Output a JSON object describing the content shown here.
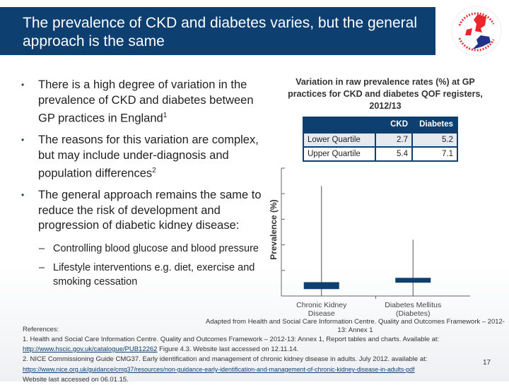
{
  "title": "The prevalence of CKD and diabetes varies, but the general approach is the same",
  "logo": {
    "top_text": "British Renal Society",
    "bottom_text": "Multi-professional team"
  },
  "bullets": [
    "There is a high degree of variation in the prevalence of CKD and diabetes between GP practices in England",
    "The reasons for this variation are complex, but may include under-diagnosis and population differences",
    "The general approach remains the same to reduce the risk of development and progression of diabetic kidney disease:"
  ],
  "bullet_refs": [
    "1",
    "2",
    ""
  ],
  "sub_bullets": [
    "Controlling blood glucose and blood pressure",
    "Lifestyle interventions e.g. diet, exercise and smoking cessation"
  ],
  "table": {
    "headers": [
      "",
      "CKD",
      "Diabetes"
    ],
    "rows": [
      [
        "Lower Quartile",
        "2.7",
        "5.2"
      ],
      [
        "Upper Quartile",
        "5.4",
        "7.1"
      ]
    ]
  },
  "chart_data": {
    "type": "box",
    "title": "Variation in raw prevalence rates (%) at GP practices for CKD and diabetes QOF registers, 2012/13",
    "ylabel": "Prevalence (%)",
    "ylim": [
      0,
      50
    ],
    "yticks": [
      "0",
      "10",
      "20",
      "30",
      "40",
      "50"
    ],
    "categories": [
      "Chronic Kidney Disease",
      "Diabetes Mellitus (Diabetes)"
    ],
    "series": [
      {
        "category": "Chronic Kidney Disease",
        "min": 0,
        "q1": 2.7,
        "q3": 5.4,
        "max": 43
      },
      {
        "category": "Diabetes Mellitus (Diabetes)",
        "min": 0,
        "q1": 5.2,
        "q3": 7.1,
        "max": 22
      }
    ],
    "color": "#0d3f70"
  },
  "source": "Adapted from Health and Social Care Information Centre. Quality and Outcomes Framework – 2012-13: Annex 1",
  "references": {
    "heading": "References:",
    "r1": "1. Health and Social Care Information Centre. Quality and Outcomes Framework – 2012-13: Annex 1, Report tables and charts. Available at:",
    "r1_link": "http://www.hscic.gov.uk/catalogue/PUB12262",
    "r1_tail": " Figure 4.3. Website last accessed on 12.11.14.",
    "r2": "2. NICE Commissioning Guide CMG37. Early identification and management of chronic kidney disease in adults. July 2012. available at:",
    "r2_link": "https://www.nice.org.uk/guidance/cmg37/resources/non-guidance-early-identification-and-management-of-chronic-kidney-disease-in-adults-pdf",
    "r2_tail": "Website last accessed on 06.01.15."
  },
  "page_number": "17"
}
